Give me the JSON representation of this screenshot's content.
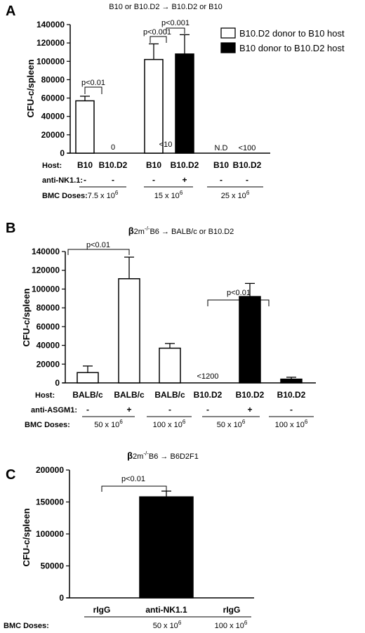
{
  "figure": {
    "row_labels": {
      "host": "Host:",
      "anti_nk": "anti-NK1.1:",
      "anti_asgm1": "anti-ASGM1:",
      "bmc": "BMC Doses:"
    }
  },
  "chart_data": [
    {
      "panel": "A",
      "type": "bar",
      "title": "B10 or B10.D2 → B10.D2 or B10",
      "ylabel": "CFU-c/spleen",
      "ylim": [
        0,
        140000
      ],
      "yticks": [
        "0",
        "20000",
        "40000",
        "60000",
        "80000",
        "100000",
        "120000",
        "140000"
      ],
      "categories": [
        "B10",
        "B10.D2",
        "B10",
        "B10.D2",
        "B10",
        "B10.D2"
      ],
      "values": [
        57000,
        0,
        102000,
        108000,
        0,
        0
      ],
      "errors": [
        5000,
        0,
        17000,
        21000,
        0,
        0
      ],
      "fill": [
        "white",
        "none",
        "white",
        "black",
        "none",
        "none"
      ],
      "legend": [
        "B10.D2 donor to B10 host",
        "B10 donor to B10.D2 host"
      ],
      "legend_position": "top-right",
      "colors": {
        "open": "#ffffff",
        "filled": "#000000"
      },
      "annotations": [
        "0",
        "<10",
        "N.D",
        "<100"
      ],
      "treatment": [
        "-",
        "-",
        "-",
        "+",
        "-",
        "-"
      ],
      "doses": [
        "7.5 x 10",
        "15 x 10",
        "25 x 10"
      ],
      "dose_exp": "6",
      "significance": [
        "p<0.01",
        "p<0.001",
        "p<0.001"
      ]
    },
    {
      "panel": "B",
      "type": "bar",
      "title_prefix": "β",
      "title_rest": "2m",
      "title_sup": "-/-",
      "title_end": "B6 → BALB/c or B10.D2",
      "ylabel": "CFU-c/spleen",
      "ylim": [
        0,
        140000
      ],
      "yticks": [
        "0",
        "20000",
        "40000",
        "60000",
        "80000",
        "100000",
        "120000",
        "140000"
      ],
      "categories": [
        "BALB/c",
        "BALB/c",
        "BALB/c",
        "B10.D2",
        "B10.D2",
        "B10.D2"
      ],
      "values": [
        11000,
        111000,
        37000,
        0,
        92000,
        4000
      ],
      "errors": [
        7000,
        23000,
        5000,
        0,
        14000,
        2000
      ],
      "fill": [
        "white",
        "white",
        "white",
        "none",
        "black",
        "black"
      ],
      "annotations": [
        "<1200"
      ],
      "treatment": [
        "-",
        "+",
        "-",
        "-",
        "+",
        "-"
      ],
      "doses": [
        "50 x 10",
        "100 x 10",
        "50 x 10",
        "100 x 10"
      ],
      "dose_exp": "6",
      "significance": [
        "p<0.01",
        "p<0.01"
      ]
    },
    {
      "panel": "C",
      "type": "bar",
      "title_prefix": "β",
      "title_rest": "2m",
      "title_sup": "-/-",
      "title_end": "B6 → B6D2F1",
      "ylabel": "CFU-c/spleen",
      "ylim": [
        0,
        200000
      ],
      "yticks": [
        "0",
        "50000",
        "100000",
        "150000",
        "200000"
      ],
      "categories": [
        "rIgG",
        "anti-NK1.1",
        "rIgG"
      ],
      "values": [
        0,
        158000,
        0
      ],
      "errors": [
        0,
        9000,
        0
      ],
      "fill": [
        "none",
        "black",
        "none"
      ],
      "doses": [
        "50 x 10",
        "100 x 10"
      ],
      "dose_exp": "6",
      "significance": [
        "p<0.01"
      ]
    }
  ]
}
